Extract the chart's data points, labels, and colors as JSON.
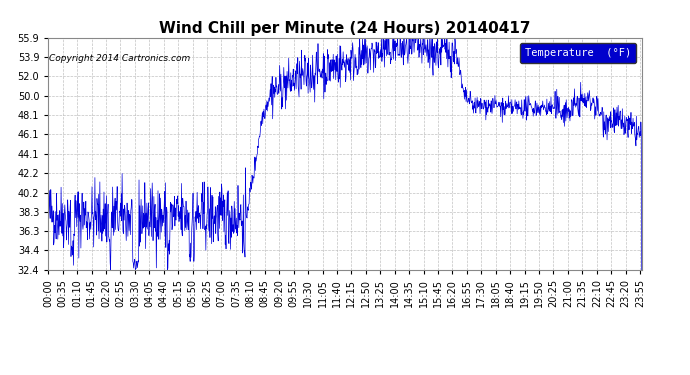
{
  "title": "Wind Chill per Minute (24 Hours) 20140417",
  "copyright": "Copyright 2014 Cartronics.com",
  "legend_label": "Temperature  (°F)",
  "line_color": "#0000dd",
  "background_color": "#ffffff",
  "grid_color": "#bbbbbb",
  "ylim": [
    32.4,
    55.9
  ],
  "yticks": [
    32.4,
    34.4,
    36.3,
    38.3,
    40.2,
    42.2,
    44.1,
    46.1,
    48.1,
    50.0,
    52.0,
    53.9,
    55.9
  ],
  "title_fontsize": 11,
  "copyright_fontsize": 6.5,
  "tick_fontsize": 7,
  "legend_fontsize": 7.5,
  "figsize": [
    6.9,
    3.75
  ],
  "dpi": 100
}
